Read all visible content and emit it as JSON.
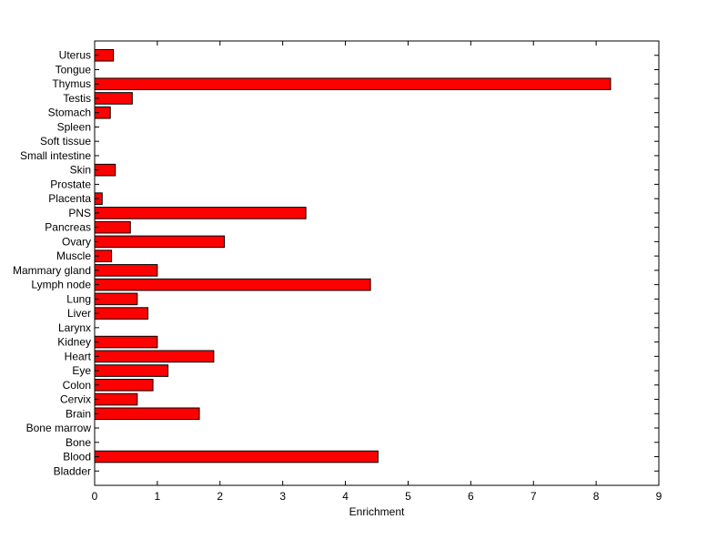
{
  "chart_data": {
    "type": "bar",
    "orientation": "horizontal",
    "xlabel": "Enrichment",
    "ylabel": "",
    "xlim": [
      0,
      9
    ],
    "xticks": [
      "0",
      "1",
      "2",
      "3",
      "4",
      "5",
      "6",
      "7",
      "8",
      "9"
    ],
    "grid": false,
    "bar_color": "#ff0000",
    "bar_edge_color": "#000000",
    "categories": [
      "Uterus",
      "Tongue",
      "Thymus",
      "Testis",
      "Stomach",
      "Spleen",
      "Soft tissue",
      "Small intestine",
      "Skin",
      "Prostate",
      "Placenta",
      "PNS",
      "Pancreas",
      "Ovary",
      "Muscle",
      "Mammary gland",
      "Lymph node",
      "Lung",
      "Liver",
      "Larynx",
      "Kidney",
      "Heart",
      "Eye",
      "Colon",
      "Cervix",
      "Brain",
      "Bone marrow",
      "Bone",
      "Blood",
      "Bladder"
    ],
    "values": [
      0.3,
      0,
      8.23,
      0.6,
      0.25,
      0,
      0,
      0,
      0.33,
      0,
      0.12,
      3.37,
      0.57,
      2.07,
      0.27,
      1.0,
      4.4,
      0.68,
      0.85,
      0,
      1.0,
      1.9,
      1.17,
      0.93,
      0.68,
      1.67,
      0,
      0,
      4.52,
      0
    ]
  }
}
